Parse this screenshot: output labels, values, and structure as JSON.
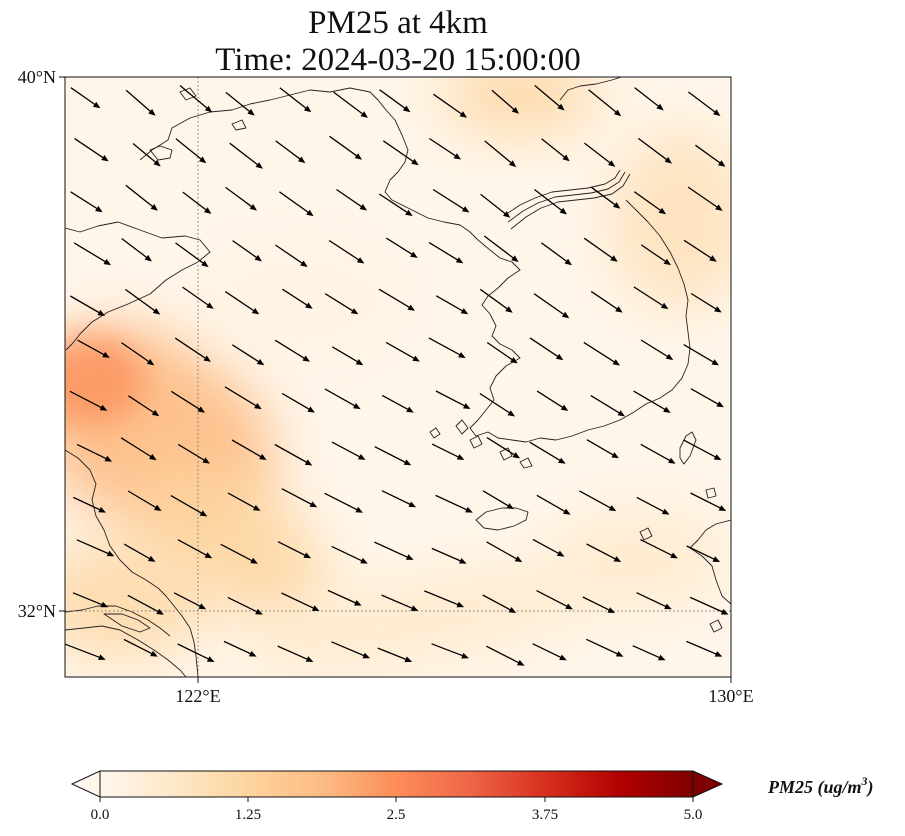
{
  "title": {
    "line1": "PM25 at 4km",
    "line2": "Time: 2024-03-20 15:00:00"
  },
  "map": {
    "variable": "PM25",
    "level": "4km",
    "time": "2024-03-20 15:00:00",
    "extent": {
      "lon_min": 120,
      "lon_max": 130,
      "lat_min": 31,
      "lat_max": 40
    },
    "lat_ticks": [
      {
        "value": 40,
        "label": "40°N"
      },
      {
        "value": 32,
        "label": "32°N"
      }
    ],
    "lon_ticks": [
      {
        "value": 122,
        "label": "122°E"
      },
      {
        "value": 130,
        "label": "130°E"
      }
    ],
    "gridlines": {
      "lons": [
        122
      ],
      "lats": [
        32
      ],
      "style": "dotted"
    },
    "wind_vectors": {
      "direction": "toward south-east",
      "color": "#000000"
    },
    "colormap": "OrRd"
  },
  "colorbar": {
    "label": "PM25 (ug/m",
    "label_superscript": "3",
    "label_close": ")",
    "range": [
      0.0,
      5.0
    ],
    "extend": "both",
    "ticks": [
      "0.0",
      "1.25",
      "2.5",
      "3.75",
      "5.0"
    ],
    "colors": [
      "#fff7ec",
      "#fee8c8",
      "#fdd49e",
      "#fdbb84",
      "#fc8d59",
      "#ef6548",
      "#d7301f",
      "#b30000",
      "#7f0000"
    ]
  }
}
